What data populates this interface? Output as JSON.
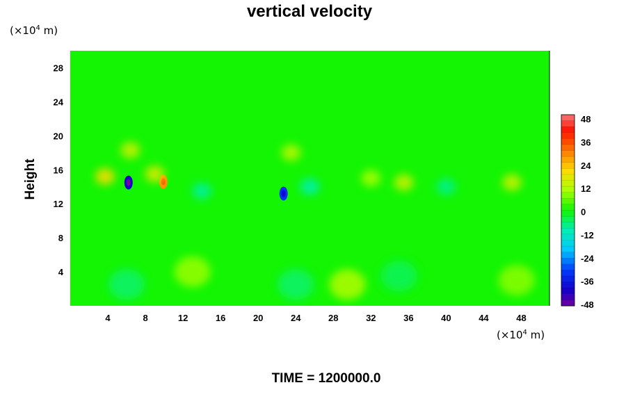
{
  "chart_data": {
    "type": "heatmap",
    "title": "vertical velocity",
    "ylabel": "Height",
    "x_unit": {
      "prefix": "(×10",
      "exponent": "4",
      "suffix": " m)"
    },
    "y_unit": {
      "prefix": "(×10",
      "exponent": "4",
      "suffix": " m)"
    },
    "xlim": [
      0,
      51
    ],
    "ylim": [
      0,
      30
    ],
    "x_ticks": [
      4,
      8,
      12,
      16,
      20,
      24,
      28,
      32,
      36,
      40,
      44,
      48
    ],
    "y_ticks": [
      4,
      8,
      12,
      16,
      20,
      24,
      28
    ],
    "colorbar": {
      "min": -48,
      "max": 48,
      "ticks": [
        48,
        36,
        24,
        12,
        0,
        -12,
        -24,
        -36,
        -48
      ]
    },
    "background_value": 0,
    "features": [
      {
        "x": 13,
        "y": 4,
        "value": 9
      },
      {
        "x": 29.5,
        "y": 2.5,
        "value": 11
      },
      {
        "x": 47.5,
        "y": 3,
        "value": 8
      },
      {
        "x": 6,
        "y": 2.5,
        "value": -6
      },
      {
        "x": 24,
        "y": 2.5,
        "value": -6
      },
      {
        "x": 35,
        "y": 3.5,
        "value": -5
      },
      {
        "x": 6.2,
        "y": 14.5,
        "value": -40
      },
      {
        "x": 22.7,
        "y": 13.2,
        "value": -32
      },
      {
        "x": 9.9,
        "y": 14.6,
        "value": 28
      },
      {
        "x": 3.7,
        "y": 15.2,
        "value": 20
      },
      {
        "x": 6.4,
        "y": 18.3,
        "value": 14
      },
      {
        "x": 9,
        "y": 15.5,
        "value": 16
      },
      {
        "x": 23.5,
        "y": 18,
        "value": 12
      },
      {
        "x": 32,
        "y": 15,
        "value": 10
      },
      {
        "x": 35.5,
        "y": 14.5,
        "value": 14
      },
      {
        "x": 47,
        "y": 14.5,
        "value": 14
      },
      {
        "x": 25.5,
        "y": 14,
        "value": -10
      },
      {
        "x": 14,
        "y": 13.5,
        "value": -9
      },
      {
        "x": 40,
        "y": 14,
        "value": -8
      }
    ]
  },
  "footer": {
    "time_label": "TIME = 1200000.0"
  }
}
